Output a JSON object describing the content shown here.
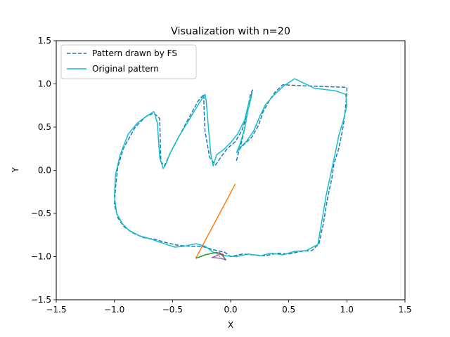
{
  "chart_data": {
    "type": "line",
    "title": "Visualization with n=20",
    "xlabel": "X",
    "ylabel": "Y",
    "xlim": [
      -1.5,
      1.5
    ],
    "ylim": [
      -1.5,
      1.5
    ],
    "x_ticks": [
      -1.5,
      -1.0,
      -0.5,
      0.0,
      0.5,
      1.0,
      1.5
    ],
    "x_tick_labels": [
      "−1.5",
      "−1.0",
      "−0.5",
      "0.0",
      "0.5",
      "1.0",
      "1.5"
    ],
    "y_ticks": [
      -1.5,
      -1.0,
      -0.5,
      0.0,
      0.5,
      1.0,
      1.5
    ],
    "y_tick_labels": [
      "−1.5",
      "−1.0",
      "−0.5",
      "0.0",
      "0.5",
      "1.0",
      "1.5"
    ],
    "grid": false,
    "legend_position": "top-left",
    "series": [
      {
        "name": "Pattern drawn by FS",
        "style": "dashed",
        "color": "#1f77b4",
        "points": [
          [
            0.05,
            0.11
          ],
          [
            0.07,
            0.22
          ],
          [
            0.1,
            0.35
          ],
          [
            0.13,
            0.55
          ],
          [
            0.16,
            0.78
          ],
          [
            0.19,
            0.93
          ],
          [
            0.17,
            0.88
          ],
          [
            0.14,
            0.64
          ],
          [
            0.1,
            0.47
          ],
          [
            0.04,
            0.33
          ],
          [
            -0.03,
            0.25
          ],
          [
            -0.1,
            0.12
          ],
          [
            -0.13,
            0.06
          ],
          [
            -0.18,
            0.15
          ],
          [
            -0.22,
            0.45
          ],
          [
            -0.23,
            0.75
          ],
          [
            -0.23,
            0.88
          ],
          [
            -0.28,
            0.8
          ],
          [
            -0.37,
            0.58
          ],
          [
            -0.46,
            0.35
          ],
          [
            -0.53,
            0.17
          ],
          [
            -0.57,
            0.05
          ],
          [
            -0.6,
            0.1
          ],
          [
            -0.61,
            0.6
          ],
          [
            -0.66,
            0.66
          ],
          [
            -0.73,
            0.62
          ],
          [
            -0.82,
            0.5
          ],
          [
            -0.92,
            0.26
          ],
          [
            -0.97,
            0.04
          ],
          [
            -0.99,
            -0.2
          ],
          [
            -1.0,
            -0.4
          ],
          [
            -0.97,
            -0.55
          ],
          [
            -0.92,
            -0.65
          ],
          [
            -0.85,
            -0.72
          ],
          [
            -0.75,
            -0.78
          ],
          [
            -0.65,
            -0.8
          ],
          [
            -0.55,
            -0.84
          ],
          [
            -0.45,
            -0.87
          ],
          [
            -0.35,
            -0.88
          ],
          [
            -0.25,
            -0.88
          ],
          [
            -0.15,
            -0.92
          ],
          [
            -0.05,
            -0.95
          ],
          [
            0.0,
            -1.0
          ],
          [
            0.1,
            -0.97
          ],
          [
            0.2,
            -0.98
          ],
          [
            0.3,
            -0.99
          ],
          [
            0.4,
            -0.96
          ],
          [
            0.5,
            -0.97
          ],
          [
            0.6,
            -0.94
          ],
          [
            0.7,
            -0.93
          ],
          [
            0.76,
            -0.85
          ],
          [
            0.8,
            -0.6
          ],
          [
            0.83,
            -0.35
          ],
          [
            0.87,
            -0.1
          ],
          [
            0.89,
            0.08
          ],
          [
            0.93,
            0.25
          ],
          [
            0.97,
            0.52
          ],
          [
            0.99,
            0.75
          ],
          [
            1.0,
            0.9
          ],
          [
            1.0,
            0.96
          ],
          [
            0.8,
            0.97
          ],
          [
            0.6,
            0.98
          ],
          [
            0.45,
            0.99
          ],
          [
            0.38,
            0.9
          ],
          [
            0.33,
            0.8
          ],
          [
            0.28,
            0.68
          ],
          [
            0.24,
            0.52
          ],
          [
            0.18,
            0.38
          ],
          [
            0.1,
            0.28
          ],
          [
            0.06,
            0.22
          ]
        ]
      },
      {
        "name": "Original pattern",
        "style": "solid",
        "color": "#17becf",
        "points": [
          [
            0.05,
            0.2
          ],
          [
            0.08,
            0.3
          ],
          [
            0.12,
            0.48
          ],
          [
            0.15,
            0.7
          ],
          [
            0.18,
            0.86
          ],
          [
            0.16,
            0.8
          ],
          [
            0.12,
            0.58
          ],
          [
            0.06,
            0.42
          ],
          [
            0.0,
            0.32
          ],
          [
            -0.06,
            0.24
          ],
          [
            -0.12,
            0.18
          ],
          [
            -0.15,
            0.05
          ],
          [
            -0.17,
            0.18
          ],
          [
            -0.19,
            0.48
          ],
          [
            -0.21,
            0.8
          ],
          [
            -0.22,
            0.88
          ],
          [
            -0.27,
            0.78
          ],
          [
            -0.35,
            0.6
          ],
          [
            -0.45,
            0.38
          ],
          [
            -0.52,
            0.2
          ],
          [
            -0.56,
            0.06
          ],
          [
            -0.58,
            0.02
          ],
          [
            -0.61,
            0.15
          ],
          [
            -0.63,
            0.55
          ],
          [
            -0.66,
            0.68
          ],
          [
            -0.72,
            0.63
          ],
          [
            -0.8,
            0.55
          ],
          [
            -0.88,
            0.42
          ],
          [
            -0.95,
            0.18
          ],
          [
            -0.99,
            -0.05
          ],
          [
            -1.0,
            -0.3
          ],
          [
            -0.98,
            -0.5
          ],
          [
            -0.93,
            -0.62
          ],
          [
            -0.87,
            -0.7
          ],
          [
            -0.78,
            -0.76
          ],
          [
            -0.68,
            -0.8
          ],
          [
            -0.57,
            -0.85
          ],
          [
            -0.48,
            -0.89
          ],
          [
            -0.4,
            -0.88
          ],
          [
            -0.3,
            -0.85
          ],
          [
            -0.22,
            -0.88
          ],
          [
            -0.15,
            -0.95
          ],
          [
            -0.05,
            -0.99
          ],
          [
            0.05,
            -1.0
          ],
          [
            0.15,
            -0.97
          ],
          [
            0.25,
            -0.99
          ],
          [
            0.35,
            -0.96
          ],
          [
            0.45,
            -0.98
          ],
          [
            0.55,
            -0.94
          ],
          [
            0.65,
            -0.93
          ],
          [
            0.75,
            -0.86
          ],
          [
            0.79,
            -0.55
          ],
          [
            0.82,
            -0.3
          ],
          [
            0.86,
            -0.05
          ],
          [
            0.9,
            0.2
          ],
          [
            0.93,
            0.4
          ],
          [
            0.97,
            0.58
          ],
          [
            1.0,
            0.75
          ],
          [
            0.99,
            0.88
          ],
          [
            0.9,
            0.92
          ],
          [
            0.72,
            0.95
          ],
          [
            0.55,
            1.06
          ],
          [
            0.46,
            0.98
          ],
          [
            0.38,
            0.88
          ],
          [
            0.3,
            0.76
          ],
          [
            0.25,
            0.62
          ],
          [
            0.2,
            0.46
          ],
          [
            0.14,
            0.34
          ],
          [
            0.08,
            0.26
          ],
          [
            0.05,
            0.2
          ]
        ]
      },
      {
        "style": "solid",
        "color": "#ff7f0e",
        "points": [
          [
            0.04,
            -0.16
          ],
          [
            -0.3,
            -1.02
          ]
        ]
      },
      {
        "style": "solid",
        "color": "#2ca02c",
        "points": [
          [
            -0.3,
            -1.02
          ],
          [
            -0.22,
            -0.98
          ],
          [
            -0.12,
            -0.95
          ],
          [
            -0.06,
            -0.98
          ]
        ]
      },
      {
        "style": "solid",
        "color": "#d62728",
        "points": [
          [
            -0.06,
            -0.98
          ],
          [
            -0.1,
            -0.96
          ],
          [
            -0.12,
            -0.99
          ]
        ]
      },
      {
        "style": "solid",
        "color": "#9467bd",
        "points": [
          [
            -0.12,
            -0.99
          ],
          [
            -0.16,
            -1.01
          ],
          [
            -0.08,
            -1.02
          ],
          [
            -0.04,
            -1.04
          ]
        ]
      },
      {
        "style": "solid",
        "color": "#8c564b",
        "points": [
          [
            -0.04,
            -1.04
          ],
          [
            -0.08,
            -0.97
          ],
          [
            -0.1,
            -0.95
          ]
        ]
      },
      {
        "style": "solid",
        "color": "#e377c2",
        "points": [
          [
            -0.1,
            -0.95
          ],
          [
            -0.11,
            -0.98
          ],
          [
            -0.09,
            -1.0
          ]
        ]
      }
    ]
  }
}
